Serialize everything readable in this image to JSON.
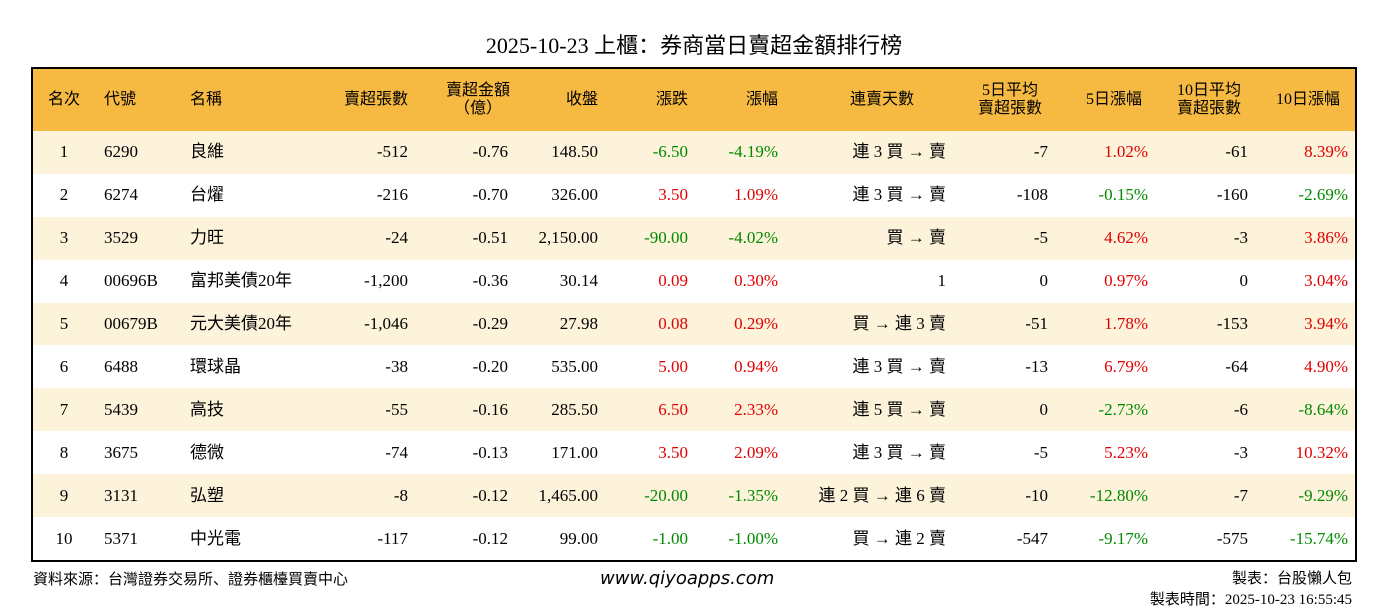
{
  "header": {
    "title": "2025-10-23 上櫃：券商當日賣超金額排行榜"
  },
  "table": {
    "columns": [
      [
        "名次"
      ],
      [
        "代號"
      ],
      [
        "名稱"
      ],
      [
        "賣超張數"
      ],
      [
        "賣超金額",
        "（億）"
      ],
      [
        "收盤"
      ],
      [
        "漲跌"
      ],
      [
        "漲幅"
      ],
      [
        "連賣天數"
      ],
      [
        "5日平均",
        "賣超張數"
      ],
      [
        "5日漲幅"
      ],
      [
        "10日平均",
        "賣超張數"
      ],
      [
        "10日漲幅"
      ]
    ],
    "rows": [
      [
        "1",
        "6290",
        "良維",
        "-512",
        "-0.76",
        "148.50",
        "-6.50",
        "-4.19%",
        "連 3 買 → 賣",
        "-7",
        "1.02%",
        "-61",
        "8.39%"
      ],
      [
        "2",
        "6274",
        "台燿",
        "-216",
        "-0.70",
        "326.00",
        "3.50",
        "1.09%",
        "連 3 買 → 賣",
        "-108",
        "-0.15%",
        "-160",
        "-2.69%"
      ],
      [
        "3",
        "3529",
        "力旺",
        "-24",
        "-0.51",
        "2,150.00",
        "-90.00",
        "-4.02%",
        "買 → 賣",
        "-5",
        "4.62%",
        "-3",
        "3.86%"
      ],
      [
        "4",
        "00696B",
        "富邦美債20年",
        "-1,200",
        "-0.36",
        "30.14",
        "0.09",
        "0.30%",
        "1",
        "0",
        "0.97%",
        "0",
        "3.04%"
      ],
      [
        "5",
        "00679B",
        "元大美債20年",
        "-1,046",
        "-0.29",
        "27.98",
        "0.08",
        "0.29%",
        "買 → 連 3 賣",
        "-51",
        "1.78%",
        "-153",
        "3.94%"
      ],
      [
        "6",
        "6488",
        "環球晶",
        "-38",
        "-0.20",
        "535.00",
        "5.00",
        "0.94%",
        "連 3 買 → 賣",
        "-13",
        "6.79%",
        "-64",
        "4.90%"
      ],
      [
        "7",
        "5439",
        "高技",
        "-55",
        "-0.16",
        "285.50",
        "6.50",
        "2.33%",
        "連 5 買 → 賣",
        "0",
        "-2.73%",
        "-6",
        "-8.64%"
      ],
      [
        "8",
        "3675",
        "德微",
        "-74",
        "-0.13",
        "171.00",
        "3.50",
        "2.09%",
        "連 3 買 → 賣",
        "-5",
        "5.23%",
        "-3",
        "10.32%"
      ],
      [
        "9",
        "3131",
        "弘塑",
        "-8",
        "-0.12",
        "1,465.00",
        "-20.00",
        "-1.35%",
        "連 2 買 → 連 6 賣",
        "-10",
        "-12.80%",
        "-7",
        "-9.29%"
      ],
      [
        "10",
        "5371",
        "中光電",
        "-117",
        "-0.12",
        "99.00",
        "-1.00",
        "-1.00%",
        "買 → 連 2 賣",
        "-547",
        "-9.17%",
        "-575",
        "-15.74%"
      ]
    ],
    "colored_columns": [
      6,
      7,
      10,
      12
    ],
    "up_color": "#e00000",
    "down_color": "#008a00",
    "header_color": "#f6b942",
    "stripe_color": "#fdf2da"
  },
  "footer": {
    "source": "資料來源：台灣證券交易所、證券櫃檯買賣中心",
    "site": "www.qiyoapps.com",
    "author": "製表：台股懶人包",
    "time": "製表時間：2025-10-23 16:55:45"
  }
}
